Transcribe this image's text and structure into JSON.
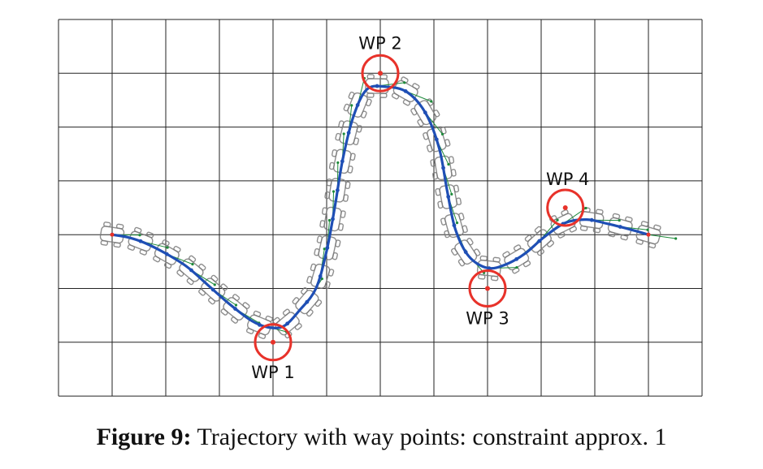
{
  "figure": {
    "caption_label": "Figure 9:",
    "caption_text": "Trajectory with way points: constraint approx. 1"
  },
  "colors": {
    "grid": "#222222",
    "path": "#1f4fb5",
    "waypoint_circle": "#e8322a",
    "vehicle_outline": "#7a7a7a",
    "heading_arrow": "#1d8a3a"
  },
  "grid": {
    "columns": 12,
    "rows": 7
  },
  "waypoints": [
    {
      "label": "WP 1",
      "col": 4,
      "row": 6
    },
    {
      "label": "WP 2",
      "col": 6,
      "row": 1
    },
    {
      "label": "WP 3",
      "col": 8,
      "row": 5
    },
    {
      "label": "WP 4",
      "col": 9.45,
      "row": 3.5
    }
  ],
  "trajectory": {
    "start": {
      "col": 1,
      "row": 4
    },
    "end": {
      "col": 11,
      "row": 4
    },
    "points": [
      [
        1.0,
        4.0
      ],
      [
        1.3,
        4.05
      ],
      [
        1.6,
        4.15
      ],
      [
        2.0,
        4.35
      ],
      [
        2.4,
        4.6
      ],
      [
        2.8,
        4.95
      ],
      [
        3.2,
        5.3
      ],
      [
        3.6,
        5.6
      ],
      [
        3.9,
        5.72
      ],
      [
        4.2,
        5.7
      ],
      [
        4.5,
        5.4
      ],
      [
        4.8,
        5.0
      ],
      [
        5.0,
        4.3
      ],
      [
        5.15,
        3.5
      ],
      [
        5.3,
        2.6
      ],
      [
        5.5,
        1.8
      ],
      [
        5.75,
        1.3
      ],
      [
        6.1,
        1.25
      ],
      [
        6.5,
        1.35
      ],
      [
        6.85,
        1.75
      ],
      [
        7.1,
        2.4
      ],
      [
        7.25,
        3.2
      ],
      [
        7.4,
        3.9
      ],
      [
        7.65,
        4.4
      ],
      [
        8.0,
        4.62
      ],
      [
        8.35,
        4.55
      ],
      [
        8.7,
        4.35
      ],
      [
        9.05,
        4.05
      ],
      [
        9.45,
        3.78
      ],
      [
        9.85,
        3.72
      ],
      [
        10.25,
        3.8
      ],
      [
        10.65,
        3.9
      ],
      [
        11.0,
        4.0
      ]
    ]
  }
}
